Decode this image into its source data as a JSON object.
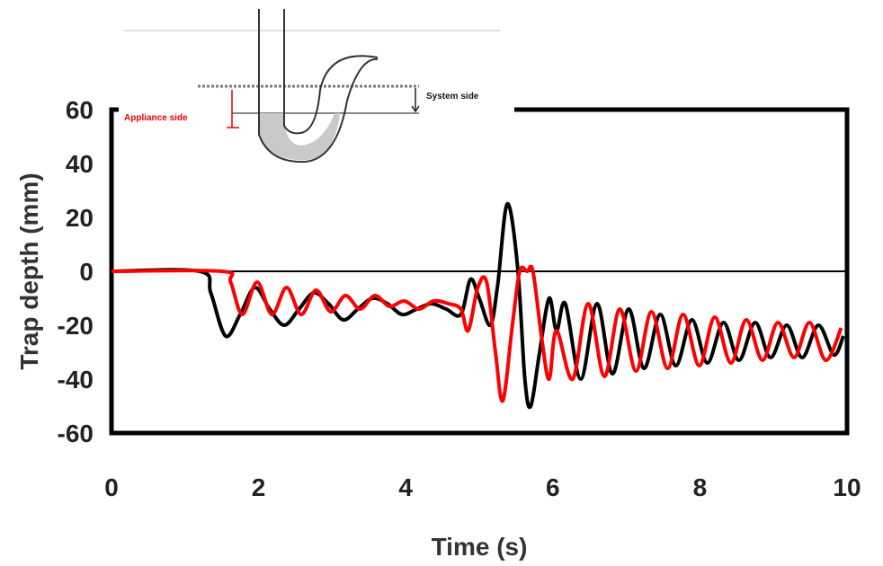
{
  "chart_data": {
    "type": "line",
    "xlabel": "Time (s)",
    "ylabel": "Trap depth (mm)",
    "xlim": [
      0,
      10
    ],
    "ylim": [
      -60,
      60
    ],
    "x_ticks": [
      "0",
      "2",
      "4",
      "6",
      "8",
      "10"
    ],
    "y_ticks": [
      "60",
      "40",
      "20",
      "0",
      "-20",
      "-40",
      "-60"
    ],
    "zero_line": true,
    "series": [
      {
        "color": "#000000",
        "x": [
          0,
          1.2,
          1.35,
          1.55,
          1.75,
          1.95,
          2.15,
          2.35,
          2.55,
          2.75,
          2.95,
          3.15,
          3.35,
          3.55,
          3.75,
          3.95,
          4.15,
          4.35,
          4.55,
          4.75,
          4.88,
          5.0,
          5.15,
          5.25,
          5.38,
          5.52,
          5.62,
          5.7,
          5.82,
          5.95,
          6.05,
          6.17,
          6.38,
          6.6,
          6.81,
          7.03,
          7.24,
          7.46,
          7.67,
          7.89,
          8.1,
          8.32,
          8.53,
          8.75,
          8.96,
          9.18,
          9.39,
          9.61,
          9.82,
          9.95
        ],
        "y": [
          0,
          0,
          -8,
          -24,
          -16,
          -6,
          -14,
          -20,
          -14,
          -8,
          -12,
          -18,
          -14,
          -10,
          -12,
          -16,
          -14,
          -12,
          -14,
          -16,
          -3,
          -10,
          -20,
          -5,
          25,
          2,
          -40,
          -50,
          -30,
          -10,
          -22,
          -12,
          -40,
          -12,
          -38,
          -14,
          -36,
          -16,
          -35,
          -18,
          -34,
          -19,
          -33,
          -19,
          -32,
          -20,
          -32,
          -20,
          -31,
          -24
        ]
      },
      {
        "color": "#ff0000",
        "x": [
          0,
          1.5,
          1.62,
          1.78,
          1.98,
          2.18,
          2.38,
          2.58,
          2.78,
          2.98,
          3.18,
          3.38,
          3.58,
          3.78,
          3.98,
          4.18,
          4.38,
          4.58,
          4.75,
          4.85,
          4.98,
          5.1,
          5.22,
          5.32,
          5.45,
          5.55,
          5.65,
          5.73,
          5.85,
          5.95,
          6.05,
          6.27,
          6.48,
          6.7,
          6.91,
          7.13,
          7.34,
          7.56,
          7.77,
          7.99,
          8.2,
          8.42,
          8.63,
          8.85,
          9.06,
          9.28,
          9.49,
          9.71,
          9.92
        ],
        "y": [
          0,
          0,
          -4,
          -16,
          -4,
          -16,
          -6,
          -16,
          -7,
          -15,
          -9,
          -14,
          -9,
          -13,
          -11,
          -14,
          -11,
          -12,
          -14,
          -22,
          -6,
          -4,
          -30,
          -48,
          -20,
          0,
          0,
          0,
          -25,
          -40,
          -22,
          -40,
          -12,
          -39,
          -14,
          -37,
          -15,
          -36,
          -16,
          -35,
          -17,
          -34,
          -18,
          -33,
          -19,
          -32,
          -19,
          -33,
          -21
        ]
      }
    ],
    "inset": {
      "label_system": "System side",
      "label_appliance": "Appliance side"
    }
  }
}
